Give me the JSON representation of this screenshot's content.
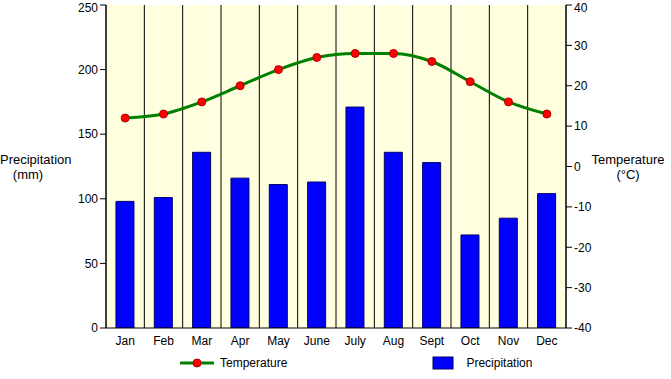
{
  "chart_data": {
    "type": "bar",
    "categories": [
      "Jan",
      "Feb",
      "Mar",
      "Apr",
      "May",
      "June",
      "July",
      "Aug",
      "Sept",
      "Oct",
      "Nov",
      "Dec"
    ],
    "series": [
      {
        "name": "Temperature",
        "type": "line",
        "color": "#008000",
        "marker": "circle",
        "axis": "y2",
        "values": [
          12,
          13,
          16,
          20,
          24,
          27,
          28,
          28,
          26,
          21,
          16,
          13
        ]
      },
      {
        "name": "Precipitation",
        "type": "bar",
        "color": "#0000ff",
        "values": [
          98,
          101,
          136,
          116,
          111,
          113,
          171,
          136,
          128,
          72,
          85,
          104
        ]
      }
    ],
    "y_label": "Precipitation\n(mm)",
    "y2_label": "Temperature\n(°C)",
    "ylim": [
      0,
      250
    ],
    "yticks": [
      0,
      50,
      100,
      150,
      200,
      250
    ],
    "y2lim": [
      -40,
      40
    ],
    "y2ticks": [
      -40,
      -30,
      -20,
      -10,
      0,
      10,
      20,
      30,
      40
    ],
    "grid": true,
    "legend": "bottom"
  }
}
